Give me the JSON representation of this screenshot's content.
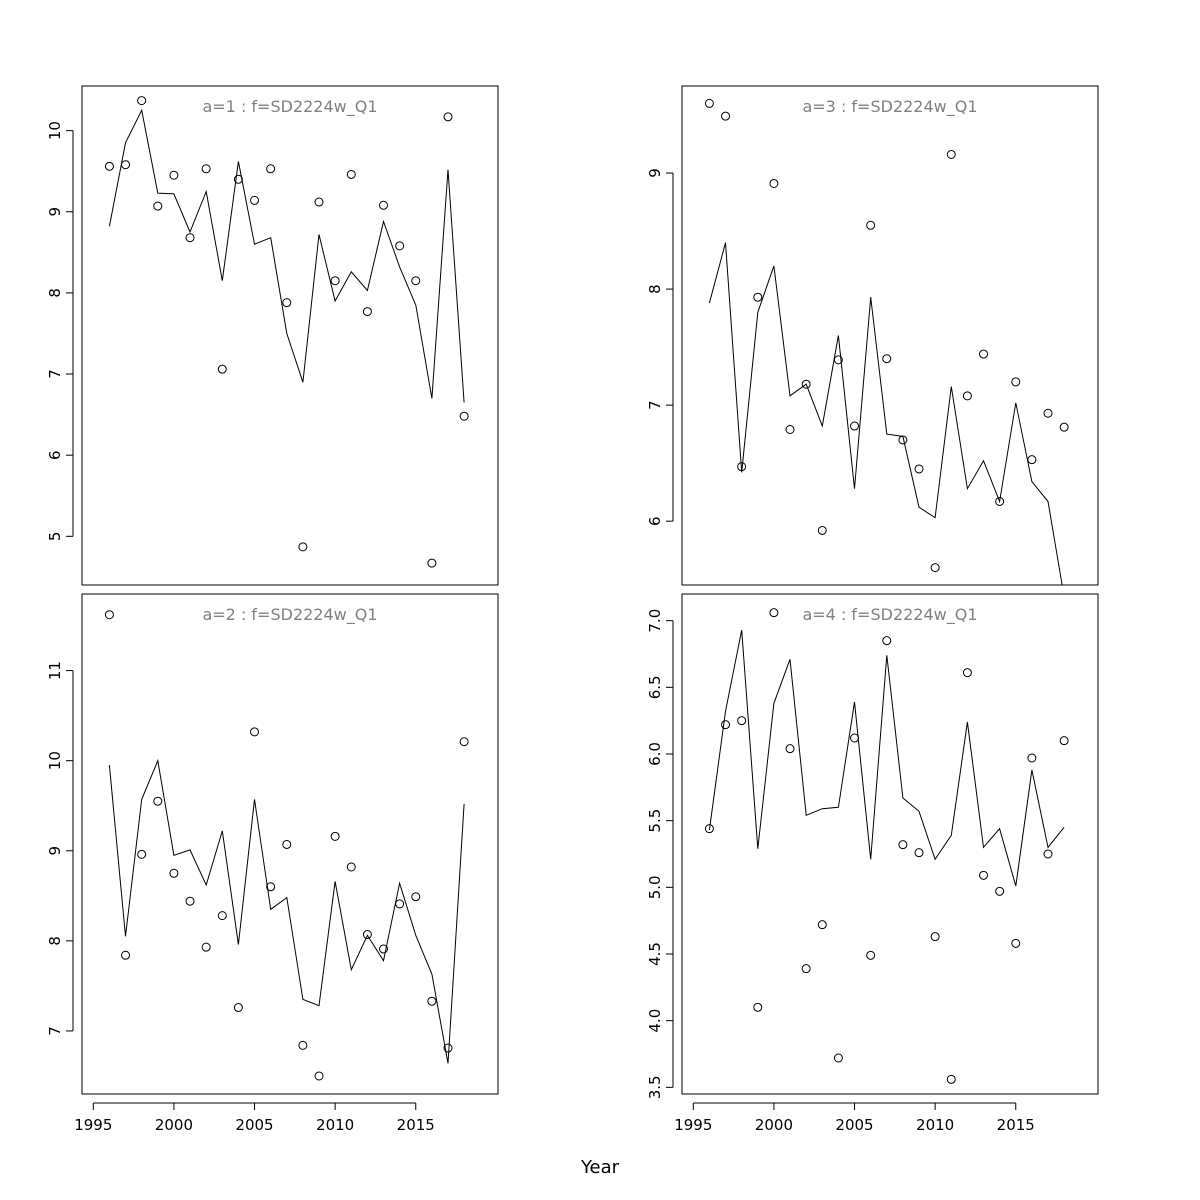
{
  "chart_data": {
    "type": "line",
    "xlabel": "Year",
    "x": [
      1996,
      1997,
      1998,
      1999,
      2000,
      2001,
      2002,
      2003,
      2004,
      2005,
      2006,
      2007,
      2008,
      2009,
      2010,
      2011,
      2012,
      2013,
      2014,
      2015,
      2016,
      2017,
      2018
    ],
    "xlim": [
      1994.3,
      2020.1
    ],
    "x_ticks": [
      1995,
      2000,
      2005,
      2010,
      2015
    ],
    "panels": [
      {
        "title": "a=1  :  f=SD2224w_Q1",
        "ylim": [
          4.4,
          10.55
        ],
        "y_ticks": [
          5,
          6,
          7,
          8,
          9,
          10
        ],
        "y_tick_labels": [
          "5",
          "6",
          "7",
          "8",
          "9",
          "10"
        ],
        "line": [
          8.82,
          9.85,
          10.25,
          9.23,
          9.22,
          8.75,
          9.25,
          8.15,
          9.62,
          8.6,
          8.68,
          7.5,
          6.9,
          8.72,
          7.9,
          8.26,
          8.03,
          8.88,
          8.32,
          7.85,
          6.7,
          9.52,
          6.65
        ],
        "points": [
          9.56,
          9.58,
          10.37,
          9.07,
          9.45,
          8.68,
          9.53,
          7.06,
          9.4,
          9.14,
          9.53,
          7.88,
          4.87,
          9.12,
          8.15,
          9.46,
          7.77,
          9.08,
          8.58,
          8.15,
          4.67,
          10.17,
          6.48
        ]
      },
      {
        "title": "a=3  :  f=SD2224w_Q1",
        "ylim": [
          5.45,
          9.75
        ],
        "y_ticks": [
          6,
          7,
          8,
          9
        ],
        "y_tick_labels": [
          "6",
          "7",
          "8",
          "9"
        ],
        "line": [
          7.88,
          8.4,
          6.42,
          7.8,
          8.2,
          7.08,
          7.18,
          6.82,
          7.6,
          6.28,
          7.93,
          6.75,
          6.73,
          6.12,
          6.03,
          7.16,
          6.28,
          6.52,
          6.17,
          7.02,
          6.34,
          6.17,
          5.35
        ],
        "points": [
          9.6,
          9.49,
          6.47,
          7.93,
          8.91,
          6.79,
          7.18,
          5.92,
          7.39,
          6.82,
          8.55,
          7.4,
          6.7,
          6.45,
          5.6,
          9.16,
          7.08,
          7.44,
          6.17,
          7.2,
          6.53,
          6.93,
          6.81
        ]
      },
      {
        "title": "a=2  :  f=SD2224w_Q1",
        "ylim": [
          6.3,
          11.85
        ],
        "y_ticks": [
          7,
          8,
          9,
          10,
          11
        ],
        "y_tick_labels": [
          "7",
          "8",
          "9",
          "10",
          "11"
        ],
        "line": [
          9.95,
          8.05,
          9.57,
          10.0,
          8.95,
          9.01,
          8.62,
          9.22,
          7.96,
          9.57,
          8.35,
          8.48,
          7.35,
          7.28,
          8.66,
          7.68,
          8.06,
          7.78,
          8.64,
          8.06,
          7.63,
          6.64,
          9.52
        ],
        "points": [
          11.62,
          7.84,
          8.96,
          9.55,
          8.75,
          8.44,
          7.93,
          8.28,
          7.26,
          10.32,
          8.6,
          9.07,
          6.84,
          6.5,
          9.16,
          8.82,
          8.07,
          7.91,
          8.41,
          8.49,
          7.33,
          6.81,
          10.21
        ]
      },
      {
        "title": "a=4  :  f=SD2224w_Q1",
        "ylim": [
          3.45,
          7.2
        ],
        "y_ticks": [
          3.5,
          4.0,
          4.5,
          5.0,
          5.5,
          6.0,
          6.5,
          7.0
        ],
        "y_tick_labels": [
          "3.5",
          "4.0",
          "4.5",
          "5.0",
          "5.5",
          "6.0",
          "6.5",
          "7.0"
        ],
        "line": [
          5.43,
          6.32,
          6.93,
          5.29,
          6.38,
          6.71,
          5.54,
          5.59,
          5.6,
          6.39,
          5.21,
          6.74,
          5.67,
          5.57,
          5.21,
          5.39,
          6.24,
          5.3,
          5.44,
          5.01,
          5.88,
          5.3,
          5.45
        ],
        "points": [
          5.44,
          6.22,
          6.25,
          4.1,
          7.06,
          6.04,
          4.39,
          4.72,
          3.72,
          6.12,
          4.49,
          6.85,
          5.32,
          5.26,
          4.63,
          3.56,
          6.61,
          5.09,
          4.97,
          4.58,
          5.97,
          5.25,
          6.1
        ]
      }
    ]
  }
}
